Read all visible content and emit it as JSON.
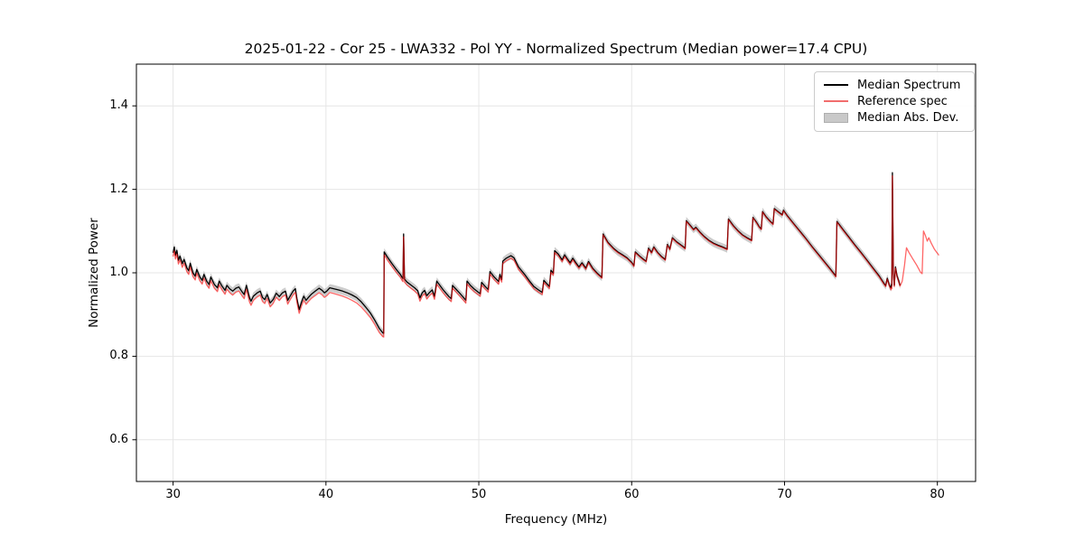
{
  "chart_data": {
    "type": "line",
    "title": "2025-01-22 - Cor 25 - LWA332 - Pol YY - Normalized Spectrum (Median power=17.4 CPU)",
    "xlabel": "Frequency (MHz)",
    "ylabel": "Normalized Power",
    "xlim": [
      27.6,
      82.5
    ],
    "ylim": [
      0.5,
      1.5
    ],
    "xticks": [
      "30",
      "40",
      "50",
      "60",
      "70",
      "80"
    ],
    "xtick_values": [
      30,
      40,
      50,
      60,
      70,
      80
    ],
    "yticks": [
      "0.6",
      "0.8",
      "1.0",
      "1.2",
      "1.4"
    ],
    "ytick_values": [
      0.6,
      0.8,
      1.0,
      1.2,
      1.4
    ],
    "grid": true,
    "grid_color": "#e6e6e6",
    "background": "#ffffff",
    "legend": {
      "position": "upper right",
      "entries": [
        {
          "label": "Median Spectrum",
          "type": "line",
          "color": "#000000"
        },
        {
          "label": "Reference spec",
          "type": "line",
          "color": "#f16d6d"
        },
        {
          "label": "Median Abs. Dev.",
          "type": "patch",
          "color": "#c9c9c9"
        }
      ]
    },
    "series": [
      {
        "name": "Median Spectrum",
        "style": "line",
        "color": "#000000",
        "line_width": 1.3,
        "points": [
          [
            30.0,
            1.048
          ],
          [
            30.08,
            1.062
          ],
          [
            30.15,
            1.042
          ],
          [
            30.25,
            1.054
          ],
          [
            30.35,
            1.03
          ],
          [
            30.45,
            1.04
          ],
          [
            30.6,
            1.022
          ],
          [
            30.72,
            1.032
          ],
          [
            30.9,
            1.012
          ],
          [
            31.02,
            1.005
          ],
          [
            31.12,
            1.023
          ],
          [
            31.3,
            1.0
          ],
          [
            31.45,
            0.992
          ],
          [
            31.55,
            1.008
          ],
          [
            31.75,
            0.99
          ],
          [
            31.9,
            0.982
          ],
          [
            32.02,
            0.996
          ],
          [
            32.2,
            0.98
          ],
          [
            32.35,
            0.972
          ],
          [
            32.47,
            0.99
          ],
          [
            32.7,
            0.972
          ],
          [
            32.9,
            0.964
          ],
          [
            33.02,
            0.98
          ],
          [
            33.2,
            0.968
          ],
          [
            33.4,
            0.958
          ],
          [
            33.52,
            0.97
          ],
          [
            33.7,
            0.962
          ],
          [
            33.9,
            0.956
          ],
          [
            34.1,
            0.963
          ],
          [
            34.3,
            0.966
          ],
          [
            34.5,
            0.955
          ],
          [
            34.65,
            0.948
          ],
          [
            34.8,
            0.97
          ],
          [
            35.0,
            0.94
          ],
          [
            35.1,
            0.932
          ],
          [
            35.25,
            0.944
          ],
          [
            35.5,
            0.952
          ],
          [
            35.7,
            0.956
          ],
          [
            35.85,
            0.941
          ],
          [
            36.0,
            0.936
          ],
          [
            36.15,
            0.948
          ],
          [
            36.35,
            0.928
          ],
          [
            36.55,
            0.936
          ],
          [
            36.75,
            0.951
          ],
          [
            36.95,
            0.943
          ],
          [
            37.15,
            0.952
          ],
          [
            37.35,
            0.956
          ],
          [
            37.5,
            0.934
          ],
          [
            37.65,
            0.944
          ],
          [
            37.85,
            0.956
          ],
          [
            38.0,
            0.962
          ],
          [
            38.1,
            0.938
          ],
          [
            38.25,
            0.912
          ],
          [
            38.4,
            0.93
          ],
          [
            38.55,
            0.944
          ],
          [
            38.7,
            0.934
          ],
          [
            38.85,
            0.941
          ],
          [
            39.05,
            0.949
          ],
          [
            39.3,
            0.956
          ],
          [
            39.55,
            0.963
          ],
          [
            39.75,
            0.958
          ],
          [
            39.9,
            0.952
          ],
          [
            40.05,
            0.956
          ],
          [
            40.25,
            0.964
          ],
          [
            40.5,
            0.962
          ],
          [
            40.8,
            0.959
          ],
          [
            41.1,
            0.956
          ],
          [
            41.4,
            0.952
          ],
          [
            41.7,
            0.947
          ],
          [
            42.0,
            0.941
          ],
          [
            42.3,
            0.931
          ],
          [
            42.6,
            0.918
          ],
          [
            42.9,
            0.904
          ],
          [
            43.2,
            0.886
          ],
          [
            43.5,
            0.866
          ],
          [
            43.72,
            0.856
          ],
          [
            43.78,
            0.855
          ],
          [
            43.81,
            1.05
          ],
          [
            44.0,
            1.039
          ],
          [
            44.3,
            1.023
          ],
          [
            44.6,
            1.008
          ],
          [
            44.85,
            0.997
          ],
          [
            45.0,
            0.988
          ],
          [
            45.04,
            0.986
          ],
          [
            45.08,
            1.093
          ],
          [
            45.14,
            0.985
          ],
          [
            45.3,
            0.978
          ],
          [
            45.55,
            0.971
          ],
          [
            45.8,
            0.964
          ],
          [
            46.0,
            0.957
          ],
          [
            46.15,
            0.94
          ],
          [
            46.3,
            0.952
          ],
          [
            46.45,
            0.958
          ],
          [
            46.6,
            0.945
          ],
          [
            46.75,
            0.952
          ],
          [
            46.95,
            0.959
          ],
          [
            47.1,
            0.944
          ],
          [
            47.25,
            0.98
          ],
          [
            47.45,
            0.97
          ],
          [
            47.65,
            0.96
          ],
          [
            47.85,
            0.951
          ],
          [
            48.05,
            0.943
          ],
          [
            48.2,
            0.938
          ],
          [
            48.28,
            0.97
          ],
          [
            48.5,
            0.961
          ],
          [
            48.75,
            0.951
          ],
          [
            49.0,
            0.941
          ],
          [
            49.15,
            0.934
          ],
          [
            49.23,
            0.98
          ],
          [
            49.45,
            0.97
          ],
          [
            49.7,
            0.961
          ],
          [
            49.95,
            0.954
          ],
          [
            50.1,
            0.95
          ],
          [
            50.18,
            0.977
          ],
          [
            50.4,
            0.968
          ],
          [
            50.62,
            0.96
          ],
          [
            50.73,
            1.003
          ],
          [
            51.0,
            0.99
          ],
          [
            51.3,
            0.979
          ],
          [
            51.38,
            0.996
          ],
          [
            51.5,
            0.984
          ],
          [
            51.57,
            1.028
          ],
          [
            51.8,
            1.035
          ],
          [
            52.1,
            1.041
          ],
          [
            52.3,
            1.036
          ],
          [
            52.6,
            1.014
          ],
          [
            53.0,
            0.996
          ],
          [
            53.3,
            0.981
          ],
          [
            53.6,
            0.967
          ],
          [
            53.9,
            0.959
          ],
          [
            54.15,
            0.953
          ],
          [
            54.25,
            0.982
          ],
          [
            54.45,
            0.974
          ],
          [
            54.62,
            0.967
          ],
          [
            54.72,
            1.006
          ],
          [
            54.88,
            0.999
          ],
          [
            54.96,
            1.053
          ],
          [
            55.2,
            1.045
          ],
          [
            55.45,
            1.031
          ],
          [
            55.62,
            1.043
          ],
          [
            55.8,
            1.033
          ],
          [
            55.97,
            1.024
          ],
          [
            56.15,
            1.035
          ],
          [
            56.35,
            1.024
          ],
          [
            56.55,
            1.014
          ],
          [
            56.75,
            1.024
          ],
          [
            57.0,
            1.011
          ],
          [
            57.18,
            1.027
          ],
          [
            57.45,
            1.011
          ],
          [
            57.75,
            0.999
          ],
          [
            58.05,
            0.989
          ],
          [
            58.13,
            1.093
          ],
          [
            58.45,
            1.073
          ],
          [
            58.8,
            1.059
          ],
          [
            59.1,
            1.05
          ],
          [
            59.4,
            1.043
          ],
          [
            59.7,
            1.036
          ],
          [
            60.0,
            1.025
          ],
          [
            60.15,
            1.017
          ],
          [
            60.23,
            1.05
          ],
          [
            60.5,
            1.041
          ],
          [
            60.75,
            1.033
          ],
          [
            60.95,
            1.028
          ],
          [
            61.1,
            1.059
          ],
          [
            61.3,
            1.049
          ],
          [
            61.45,
            1.062
          ],
          [
            61.7,
            1.049
          ],
          [
            61.95,
            1.039
          ],
          [
            62.2,
            1.032
          ],
          [
            62.33,
            1.068
          ],
          [
            62.5,
            1.057
          ],
          [
            62.66,
            1.084
          ],
          [
            62.95,
            1.074
          ],
          [
            63.25,
            1.066
          ],
          [
            63.5,
            1.059
          ],
          [
            63.57,
            1.125
          ],
          [
            63.85,
            1.113
          ],
          [
            64.05,
            1.104
          ],
          [
            64.2,
            1.109
          ],
          [
            64.45,
            1.098
          ],
          [
            64.75,
            1.087
          ],
          [
            65.05,
            1.078
          ],
          [
            65.35,
            1.071
          ],
          [
            65.65,
            1.066
          ],
          [
            65.95,
            1.062
          ],
          [
            66.25,
            1.057
          ],
          [
            66.33,
            1.129
          ],
          [
            66.65,
            1.113
          ],
          [
            66.95,
            1.101
          ],
          [
            67.25,
            1.091
          ],
          [
            67.55,
            1.084
          ],
          [
            67.85,
            1.078
          ],
          [
            67.93,
            1.133
          ],
          [
            68.15,
            1.122
          ],
          [
            68.35,
            1.11
          ],
          [
            68.48,
            1.105
          ],
          [
            68.56,
            1.147
          ],
          [
            68.8,
            1.134
          ],
          [
            69.05,
            1.124
          ],
          [
            69.25,
            1.117
          ],
          [
            69.33,
            1.154
          ],
          [
            69.6,
            1.146
          ],
          [
            69.85,
            1.139
          ],
          [
            69.93,
            1.15
          ],
          [
            70.2,
            1.136
          ],
          [
            70.6,
            1.118
          ],
          [
            71.0,
            1.1
          ],
          [
            71.4,
            1.082
          ],
          [
            71.8,
            1.063
          ],
          [
            72.2,
            1.045
          ],
          [
            72.6,
            1.027
          ],
          [
            73.0,
            1.009
          ],
          [
            73.36,
            0.992
          ],
          [
            73.43,
            1.123
          ],
          [
            73.8,
            1.105
          ],
          [
            74.2,
            1.086
          ],
          [
            74.6,
            1.067
          ],
          [
            75.0,
            1.049
          ],
          [
            75.4,
            1.03
          ],
          [
            75.8,
            1.011
          ],
          [
            76.2,
            0.992
          ],
          [
            76.5,
            0.975
          ],
          [
            76.62,
            0.969
          ],
          [
            76.72,
            0.987
          ],
          [
            76.86,
            0.97
          ],
          [
            76.96,
            0.964
          ],
          [
            77.0,
            0.972
          ],
          [
            77.02,
            0.97
          ],
          [
            77.06,
            1.24
          ],
          [
            77.12,
            0.998
          ],
          [
            77.18,
            0.97
          ],
          [
            77.26,
            1.014
          ],
          [
            77.36,
            0.993
          ],
          [
            77.46,
            0.982
          ],
          [
            77.56,
            0.97
          ]
        ]
      },
      {
        "name": "Reference spec",
        "style": "line",
        "color": "#ff0000",
        "opacity": 0.6,
        "line_width": 1.3,
        "offset_below_median": [
          [
            27.6,
            0.009
          ],
          [
            33.0,
            0.009
          ],
          [
            35.0,
            0.01
          ],
          [
            38.0,
            0.009
          ],
          [
            40.0,
            0.011
          ],
          [
            42.0,
            0.013
          ],
          [
            43.78,
            0.009
          ],
          [
            43.81,
            0.007
          ],
          [
            45.0,
            0.007
          ],
          [
            46.0,
            0.008
          ],
          [
            50.0,
            0.006
          ],
          [
            52.0,
            0.006
          ],
          [
            56.0,
            0.004
          ],
          [
            58.0,
            0.002
          ],
          [
            70.0,
            0.0015
          ],
          [
            76.9,
            0.002
          ],
          [
            77.02,
            0.008
          ],
          [
            77.06,
            0.008
          ],
          [
            77.12,
            0.003
          ],
          [
            77.56,
            0.002
          ]
        ],
        "tail_points": [
          [
            77.56,
            0.968
          ],
          [
            77.7,
            0.98
          ],
          [
            77.85,
            1.018
          ],
          [
            77.98,
            1.06
          ],
          [
            78.15,
            1.048
          ],
          [
            78.4,
            1.033
          ],
          [
            78.65,
            1.018
          ],
          [
            78.9,
            1.001
          ],
          [
            79.0,
            0.998
          ],
          [
            79.09,
            1.1
          ],
          [
            79.22,
            1.089
          ],
          [
            79.34,
            1.076
          ],
          [
            79.44,
            1.084
          ],
          [
            79.6,
            1.071
          ],
          [
            79.8,
            1.057
          ],
          [
            80.1,
            1.042
          ]
        ]
      },
      {
        "name": "Median Abs. Dev.",
        "style": "band",
        "color": "#808080",
        "opacity": 0.4,
        "half_width": 0.009
      }
    ]
  }
}
